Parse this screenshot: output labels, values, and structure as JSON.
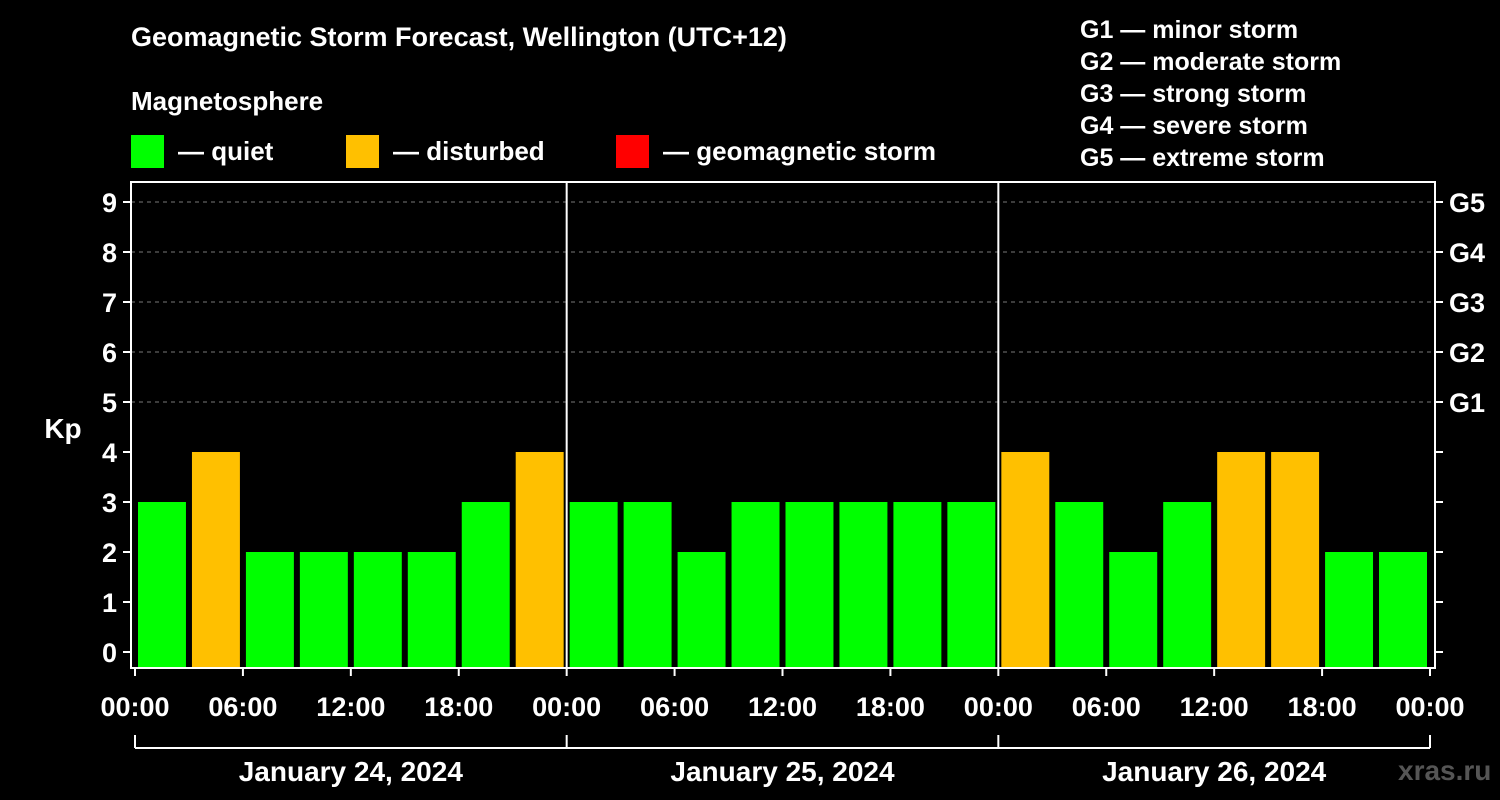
{
  "title": "Geomagnetic Storm Forecast, Wellington (UTC+12)",
  "subtitle": "Magnetosphere",
  "legend": [
    {
      "label": "— quiet",
      "color": "#00ff00"
    },
    {
      "label": "— disturbed",
      "color": "#ffc000"
    },
    {
      "label": "— geomagnetic storm",
      "color": "#ff0000"
    }
  ],
  "storm_scale": [
    "G1 — minor storm",
    "G2 — moderate storm",
    "G3 — strong storm",
    "G4 — severe storm",
    "G5 — extreme storm"
  ],
  "watermark": "xras.ru",
  "chart_data": {
    "type": "bar",
    "title": "Geomagnetic Storm Forecast, Wellington (UTC+12)",
    "ylabel": "Kp",
    "ylim": [
      0,
      9
    ],
    "y_ticks": [
      "0",
      "1",
      "2",
      "3",
      "4",
      "5",
      "6",
      "7",
      "8",
      "9"
    ],
    "right_ticks": [
      {
        "kp": 5,
        "label": "G1"
      },
      {
        "kp": 6,
        "label": "G2"
      },
      {
        "kp": 7,
        "label": "G3"
      },
      {
        "kp": 8,
        "label": "G4"
      },
      {
        "kp": 9,
        "label": "G5"
      }
    ],
    "x_tick_labels": [
      "00:00",
      "06:00",
      "12:00",
      "18:00",
      "00:00",
      "06:00",
      "12:00",
      "18:00",
      "00:00",
      "06:00",
      "12:00",
      "18:00",
      "00:00"
    ],
    "days": [
      "January 24, 2024",
      "January 25, 2024",
      "January 26, 2024"
    ],
    "interval_hours": 3,
    "values": [
      3,
      4,
      2,
      2,
      2,
      2,
      3,
      4,
      3,
      3,
      2,
      3,
      3,
      3,
      3,
      3,
      4,
      3,
      2,
      3,
      4,
      4,
      2,
      2
    ],
    "colors": {
      "quiet": "#00ff00",
      "disturbed": "#ffc000",
      "storm": "#ff0000"
    }
  }
}
